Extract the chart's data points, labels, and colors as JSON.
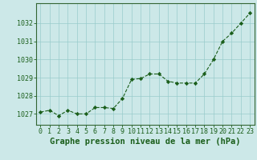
{
  "x": [
    0,
    1,
    2,
    3,
    4,
    5,
    6,
    7,
    8,
    9,
    10,
    11,
    12,
    13,
    14,
    15,
    16,
    17,
    18,
    19,
    20,
    21,
    22,
    23
  ],
  "y": [
    1027.1,
    1027.2,
    1026.9,
    1027.2,
    1027.0,
    1027.0,
    1027.35,
    1027.35,
    1027.3,
    1027.85,
    1028.9,
    1028.95,
    1029.2,
    1029.2,
    1028.8,
    1028.7,
    1028.7,
    1028.7,
    1029.2,
    1030.0,
    1031.0,
    1031.45,
    1032.0,
    1032.55
  ],
  "line_color": "#1a5e1a",
  "marker": "D",
  "marker_size": 2.2,
  "bg_color": "#cce8e8",
  "grid_color": "#99cccc",
  "xlabel": "Graphe pression niveau de la mer (hPa)",
  "xlabel_fontsize": 7.5,
  "ylabel_ticks": [
    1027,
    1028,
    1029,
    1030,
    1031,
    1032
  ],
  "ylim": [
    1026.4,
    1033.1
  ],
  "xlim": [
    -0.5,
    23.5
  ],
  "tick_color": "#1a5e1a",
  "tick_fontsize": 6.0,
  "spine_color": "#336633"
}
